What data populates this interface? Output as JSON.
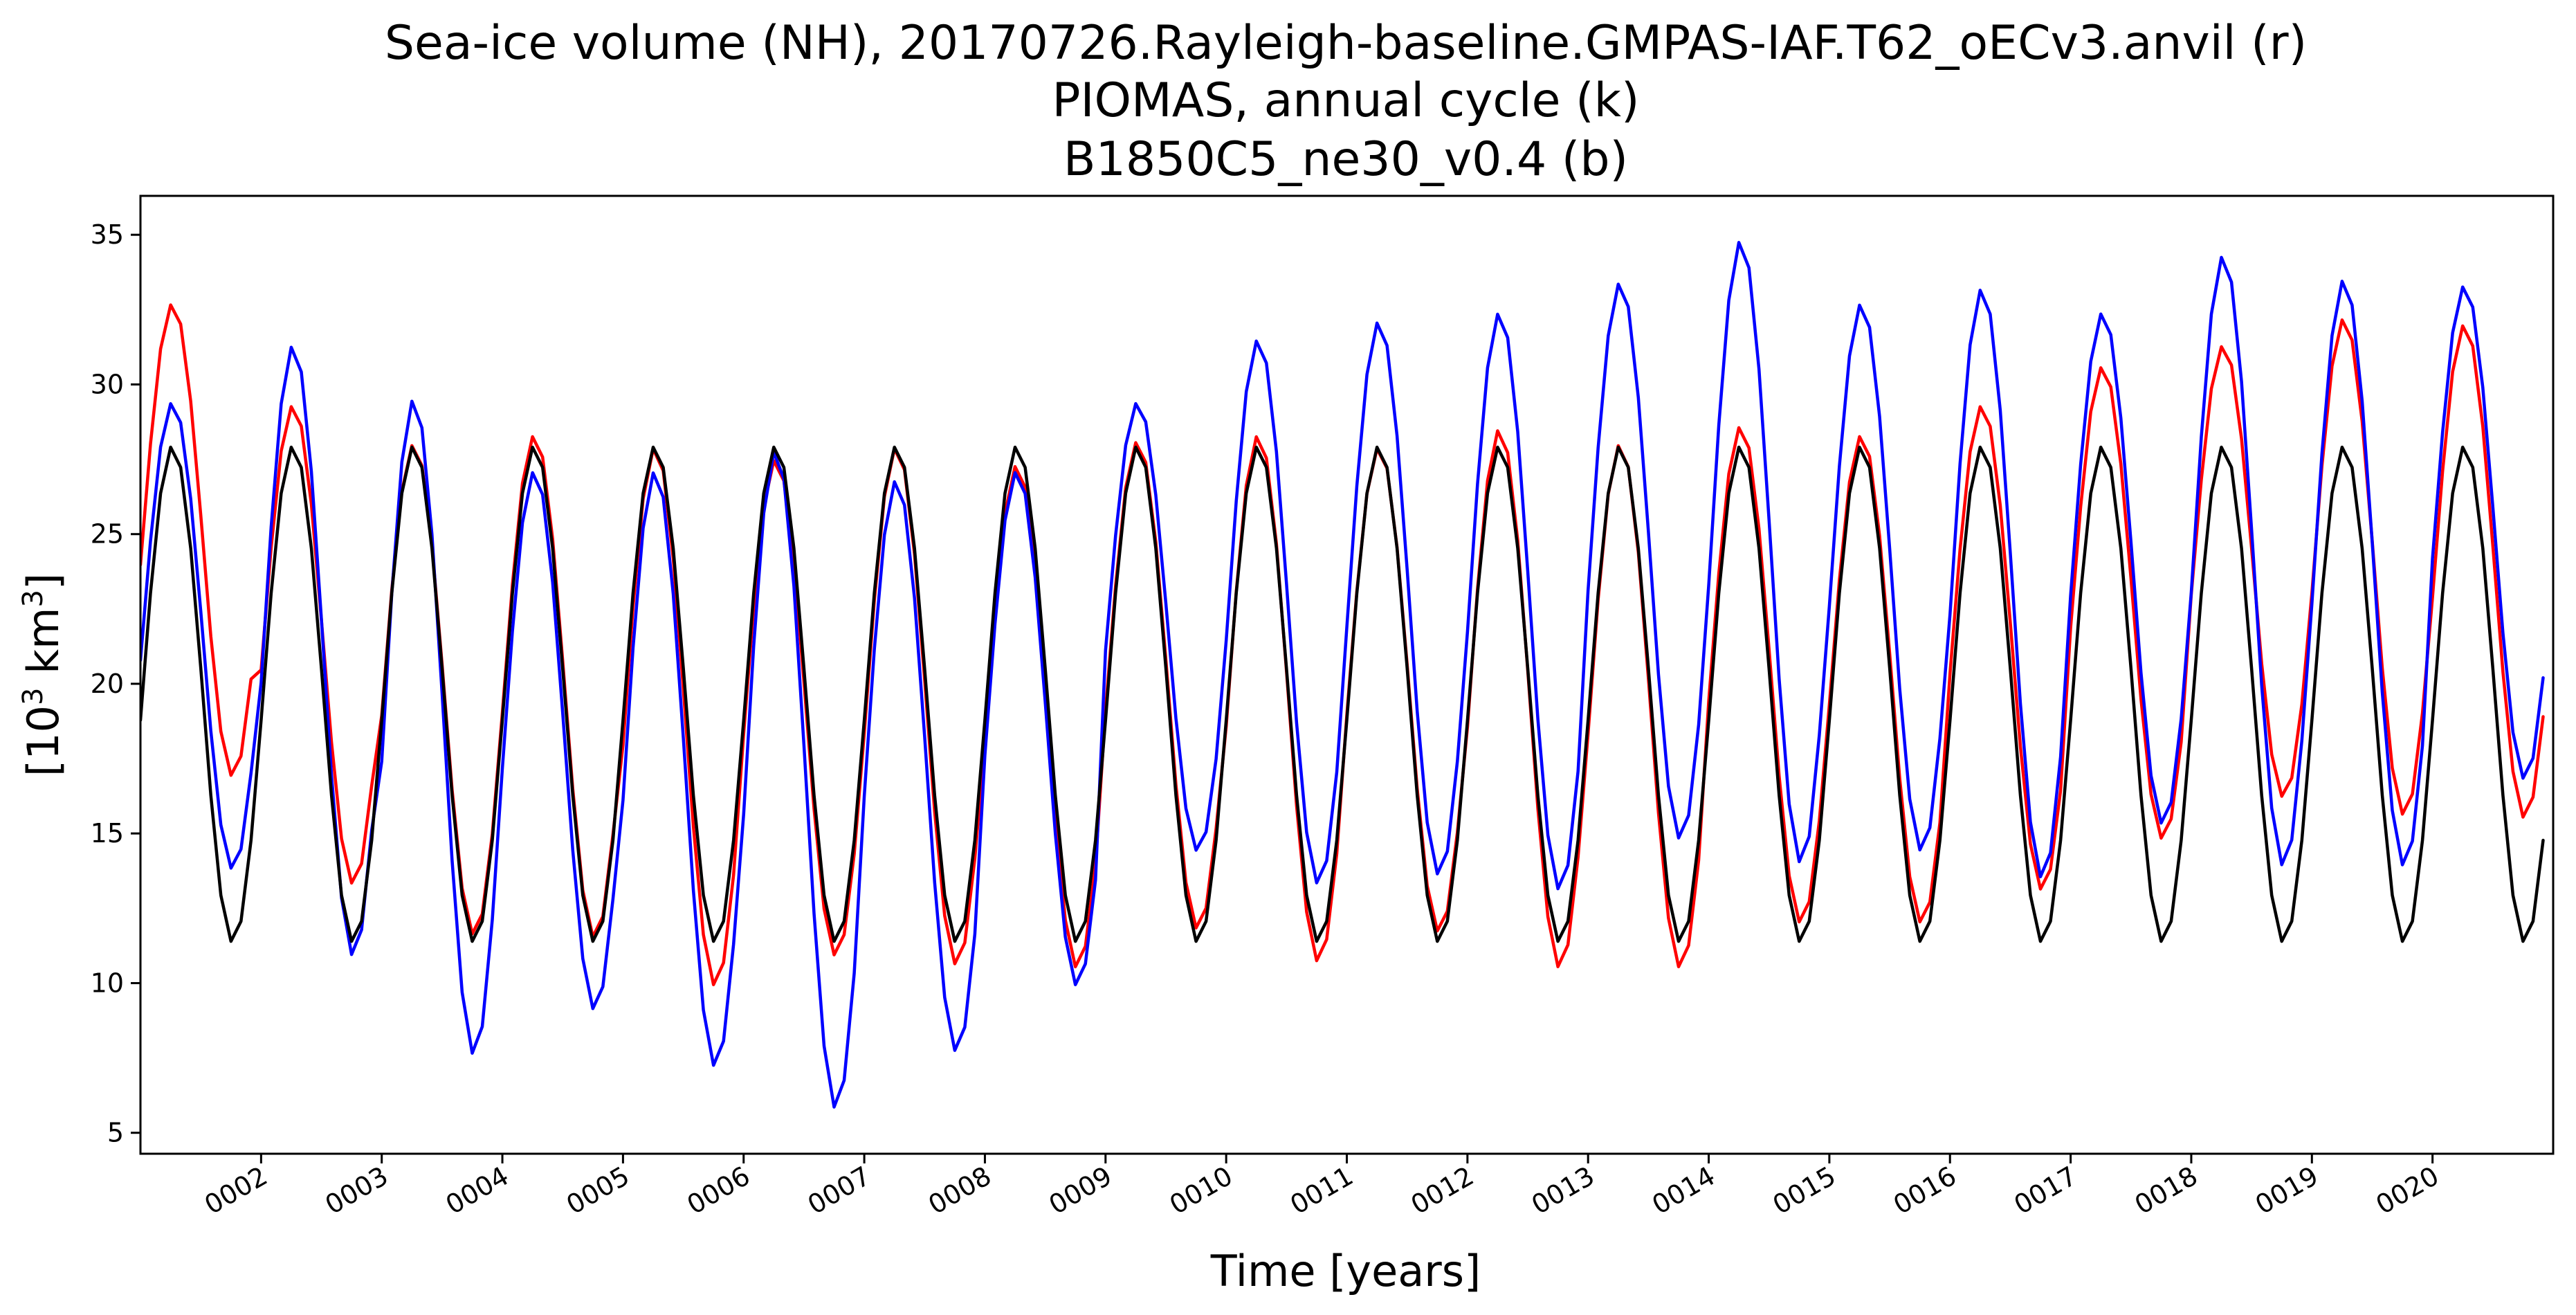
{
  "chart_data": {
    "type": "line",
    "title_lines": [
      "Sea-ice volume (NH), 20170726.Rayleigh-baseline.GMPAS-IAF.T62_oECv3.anvil (r)",
      "PIOMAS, annual cycle (k)",
      "B1850C5_ne30_v0.4 (b)"
    ],
    "xlabel": "Time [years]",
    "ylabel_parts": {
      "pre": "[10",
      "sup1": "3",
      "mid": " km",
      "sup2": "3",
      "post": "]"
    },
    "xlim": [
      1.0,
      21.0
    ],
    "ylim": [
      4.3,
      36.3
    ],
    "y_ticks": [
      5,
      10,
      15,
      20,
      25,
      30,
      35
    ],
    "x_ticks": [
      {
        "value": 2,
        "label": "0002"
      },
      {
        "value": 3,
        "label": "0003"
      },
      {
        "value": 4,
        "label": "0004"
      },
      {
        "value": 5,
        "label": "0005"
      },
      {
        "value": 6,
        "label": "0006"
      },
      {
        "value": 7,
        "label": "0007"
      },
      {
        "value": 8,
        "label": "0008"
      },
      {
        "value": 9,
        "label": "0009"
      },
      {
        "value": 10,
        "label": "0010"
      },
      {
        "value": 11,
        "label": "0011"
      },
      {
        "value": 12,
        "label": "0012"
      },
      {
        "value": 13,
        "label": "0013"
      },
      {
        "value": 14,
        "label": "0014"
      },
      {
        "value": 15,
        "label": "0015"
      },
      {
        "value": 16,
        "label": "0016"
      },
      {
        "value": 17,
        "label": "0017"
      },
      {
        "value": 18,
        "label": "0018"
      },
      {
        "value": 19,
        "label": "0019"
      },
      {
        "value": 20,
        "label": "0020"
      }
    ],
    "grid": false,
    "annual_cycle_month_fractions": [
      0.0,
      0.08333,
      0.16667,
      0.25,
      0.33333,
      0.41667,
      0.5,
      0.58333,
      0.66667,
      0.75,
      0.83333,
      0.91667
    ],
    "series": [
      {
        "color": "#ff0000",
        "annual_max": [
          32.7,
          29.3,
          28.0,
          28.3,
          27.9,
          27.5,
          27.9,
          27.3,
          28.1,
          28.3,
          27.9,
          28.5,
          28.0,
          28.6,
          28.3,
          29.3,
          30.6,
          31.3,
          32.2,
          32.0
        ],
        "annual_min": [
          16.9,
          13.3,
          11.6,
          11.5,
          9.9,
          10.9,
          10.6,
          10.5,
          11.8,
          10.7,
          11.7,
          10.5,
          10.5,
          12.0,
          12.0,
          13.1,
          14.8,
          16.2,
          15.6,
          15.5
        ]
      },
      {
        "color": "#0000ff",
        "annual_max": [
          29.4,
          31.3,
          29.5,
          27.1,
          27.1,
          27.8,
          26.8,
          27.1,
          29.4,
          31.5,
          32.1,
          32.4,
          33.4,
          34.8,
          32.7,
          33.2,
          32.4,
          34.3,
          33.5,
          33.3
        ],
        "annual_min": [
          13.8,
          10.9,
          7.6,
          9.1,
          7.2,
          5.8,
          7.7,
          9.9,
          14.4,
          13.3,
          13.6,
          13.1,
          14.8,
          14.0,
          14.4,
          13.5,
          15.3,
          13.9,
          13.9,
          16.8
        ]
      },
      {
        "color": "#000000",
        "annual_max": [
          27.95,
          27.95,
          27.95,
          27.95,
          27.95,
          27.95,
          27.95,
          27.95,
          27.95,
          27.95,
          27.95,
          27.95,
          27.95,
          27.95,
          27.95,
          27.95,
          27.95,
          27.95,
          27.95,
          27.95
        ],
        "annual_min": [
          11.35,
          11.35,
          11.35,
          11.35,
          11.35,
          11.35,
          11.35,
          11.35,
          11.35,
          11.35,
          11.35,
          11.35,
          11.35,
          11.35,
          11.35,
          11.35,
          11.35,
          11.35,
          11.35,
          11.35
        ]
      }
    ]
  }
}
